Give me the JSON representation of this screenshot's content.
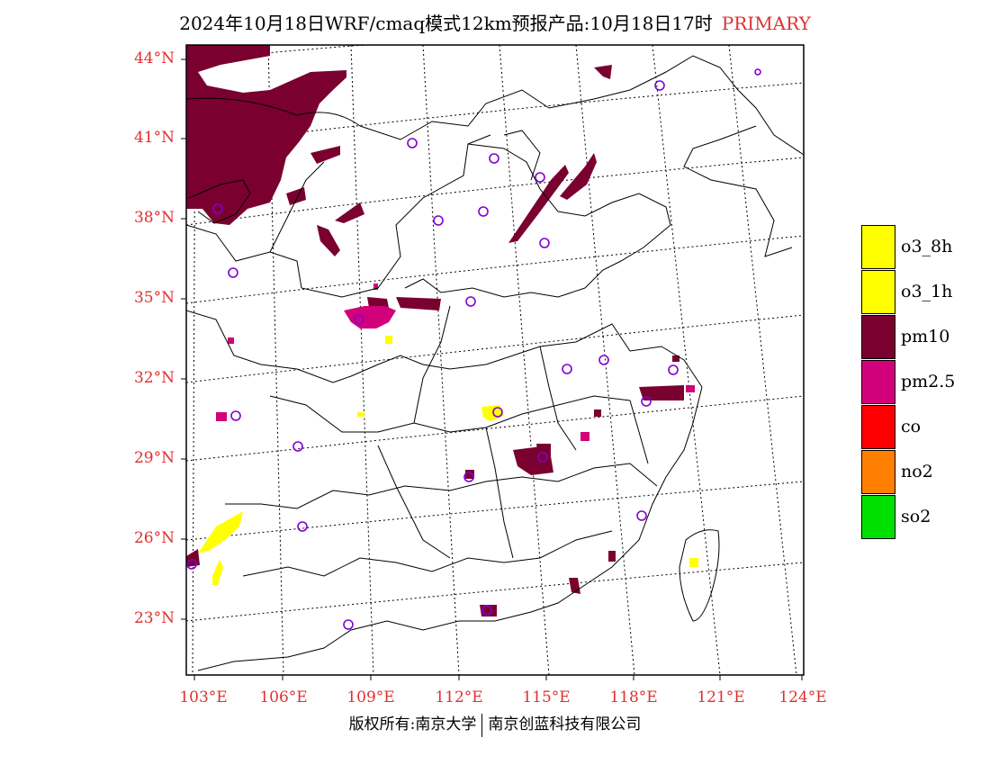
{
  "title": {
    "main": "2024年10月18日WRF/cmaq模式12km预报产品:10月18日17时",
    "tag": "PRIMARY"
  },
  "lat_labels": [
    "44°N",
    "41°N",
    "38°N",
    "35°N",
    "32°N",
    "29°N",
    "26°N",
    "23°N"
  ],
  "lon_labels": [
    "103°E",
    "106°E",
    "109°E",
    "112°E",
    "115°E",
    "118°E",
    "121°E",
    "124°E"
  ],
  "legend": [
    {
      "label": "o3_8h",
      "color": "#ffff00"
    },
    {
      "label": "o3_1h",
      "color": "#ffff00"
    },
    {
      "label": "pm10",
      "color": "#7a0030"
    },
    {
      "label": "pm2.5",
      "color": "#d2007a"
    },
    {
      "label": "co",
      "color": "#ff0000"
    },
    {
      "label": "no2",
      "color": "#ff8000"
    },
    {
      "label": "so2",
      "color": "#00e000"
    }
  ],
  "footer": {
    "left": "版权所有:南京大学",
    "right": "南京创蓝科技有限公司"
  }
}
